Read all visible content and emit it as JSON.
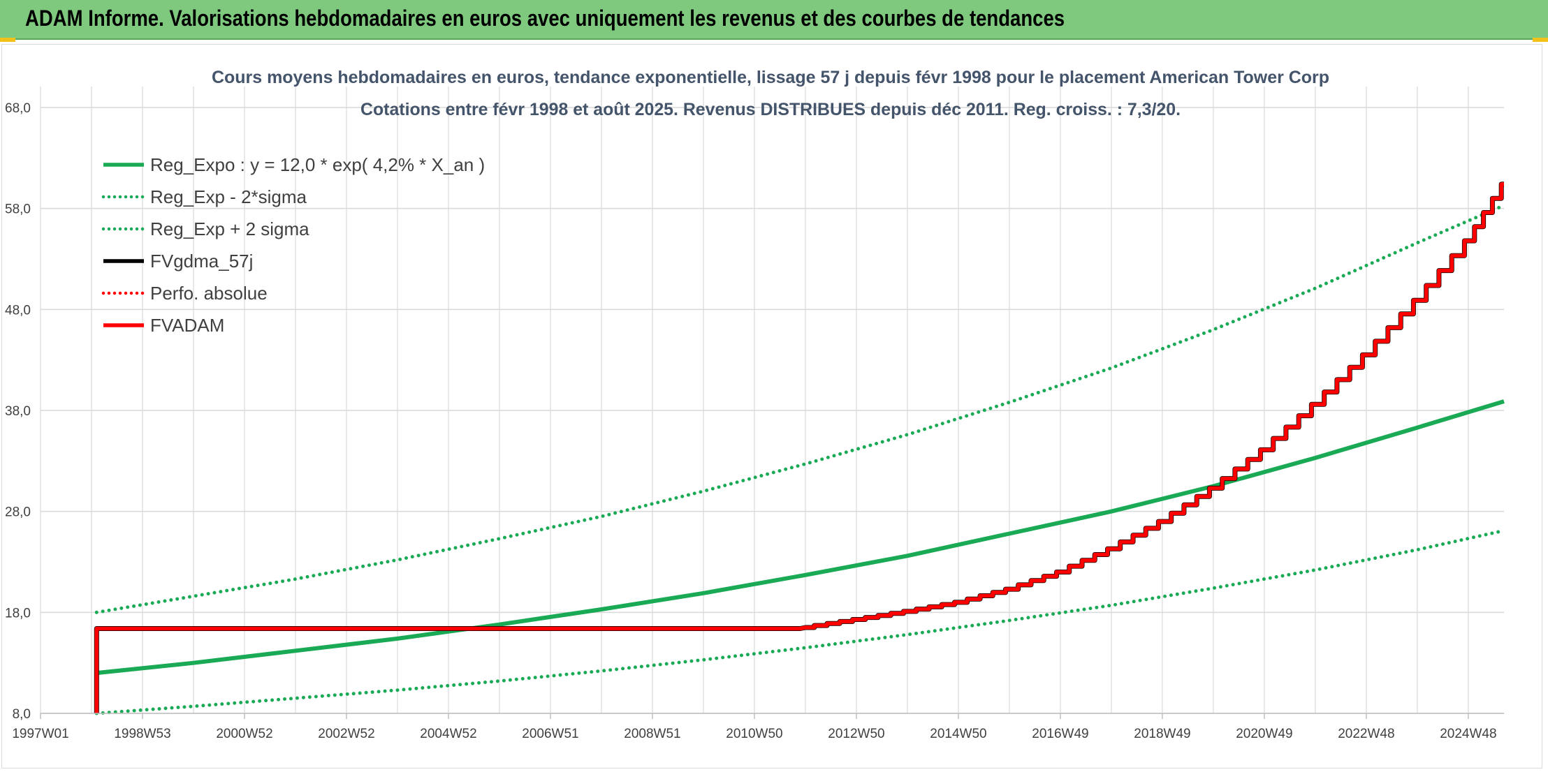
{
  "banner": {
    "title": "ADAM Informe. Valorisations hebdomadaires en euros avec uniquement les revenus et des courbes de tendances"
  },
  "colors": {
    "banner_bg": "#7fc97f",
    "reg_green": "#1aaa55",
    "black": "#000000",
    "red": "#ff0000",
    "grid": "#d9d9d9",
    "text": "#404040"
  },
  "chart_data": {
    "type": "line",
    "title": "Cours moyens hebdomadaires en euros, tendance exponentielle, lissage 57 j depuis févr 1998 pour le placement American Tower Corp",
    "subtitle": "Cotations entre févr 1998 et août 2025. Revenus DISTRIBUES depuis déc 2011. Reg. croiss. : 7,3/20.",
    "y_ticks": [
      "68,0",
      "58,0",
      "48,0",
      "38,0",
      "28,0",
      "18,0",
      "8,0"
    ],
    "ylim": [
      8,
      68
    ],
    "x_ticks": [
      "1997W01",
      "1998W53",
      "2000W52",
      "2002W52",
      "2004W52",
      "2006W51",
      "2008W51",
      "2010W50",
      "2012W50",
      "2014W50",
      "2016W49",
      "2018W49",
      "2020W49",
      "2022W48",
      "2024W48"
    ],
    "x_tick_years": [
      1997.0,
      1999.0,
      2001.0,
      2003.0,
      2005.0,
      2007.0,
      2009.0,
      2011.0,
      2013.0,
      2015.0,
      2017.0,
      2019.0,
      2021.0,
      2023.0,
      2025.0
    ],
    "xlim": [
      1997.0,
      2025.7
    ],
    "grid": true,
    "legend_position": "top-left",
    "series": [
      {
        "name": "Reg_Expo : y = 12,0 * exp( 4,2% *  X_an )",
        "style": "solid",
        "color": "#1aaa55",
        "x": [
          1998.1,
          2000.0,
          2002.0,
          2004.0,
          2006.0,
          2008.0,
          2010.0,
          2012.0,
          2014.0,
          2016.0,
          2018.0,
          2020.0,
          2022.0,
          2024.0,
          2025.7
        ],
        "y": [
          12.0,
          13.0,
          14.2,
          15.4,
          16.8,
          18.3,
          19.9,
          21.7,
          23.6,
          25.8,
          28.0,
          30.5,
          33.3,
          36.3,
          38.9
        ]
      },
      {
        "name": "Reg_Exp - 2*sigma",
        "style": "dotted",
        "color": "#1aaa55",
        "x": [
          1998.1,
          2000.0,
          2002.0,
          2004.0,
          2006.0,
          2008.0,
          2010.0,
          2012.0,
          2014.0,
          2016.0,
          2018.0,
          2020.0,
          2022.0,
          2024.0,
          2025.7
        ],
        "y": [
          8.0,
          8.7,
          9.5,
          10.3,
          11.2,
          12.2,
          13.3,
          14.5,
          15.8,
          17.2,
          18.7,
          20.4,
          22.2,
          24.2,
          26.1
        ]
      },
      {
        "name": "Reg_Exp + 2 sigma",
        "style": "dotted",
        "color": "#1aaa55",
        "x": [
          1998.1,
          2000.0,
          2002.0,
          2004.0,
          2006.0,
          2008.0,
          2010.0,
          2012.0,
          2014.0,
          2016.0,
          2018.0,
          2020.0,
          2022.0,
          2024.0,
          2025.7
        ],
        "y": [
          18.0,
          19.6,
          21.3,
          23.2,
          25.3,
          27.5,
          30.0,
          32.7,
          35.6,
          38.8,
          42.2,
          46.0,
          50.1,
          54.6,
          58.3
        ]
      },
      {
        "name": "FVgdma_57j",
        "style": "solid",
        "color": "#000000",
        "x": [
          1998.1,
          1998.1,
          2011.9,
          2012.0,
          2013.0,
          2014.0,
          2015.0,
          2016.0,
          2017.0,
          2018.0,
          2019.0,
          2020.0,
          2021.0,
          2022.0,
          2023.0,
          2024.0,
          2025.0,
          2025.7
        ],
        "y": [
          8.0,
          16.4,
          16.4,
          16.5,
          17.3,
          18.1,
          19.0,
          20.3,
          22.0,
          24.3,
          27.0,
          30.3,
          34.1,
          38.6,
          43.5,
          48.9,
          54.8,
          60.4
        ]
      },
      {
        "name": "Perfo. absolue",
        "style": "dotted",
        "color": "#ff0000",
        "x": [],
        "y": []
      },
      {
        "name": "FVADAM",
        "style": "solid",
        "color": "#ff0000",
        "x": [
          1998.1,
          1998.1,
          2011.9,
          2012.0,
          2013.0,
          2014.0,
          2015.0,
          2016.0,
          2017.0,
          2018.0,
          2019.0,
          2020.0,
          2021.0,
          2022.0,
          2023.0,
          2024.0,
          2025.0,
          2025.7
        ],
        "y": [
          8.0,
          16.4,
          16.4,
          16.5,
          17.3,
          18.1,
          19.0,
          20.3,
          22.0,
          24.3,
          27.0,
          30.3,
          34.1,
          38.6,
          43.5,
          48.9,
          54.8,
          60.4
        ]
      }
    ]
  }
}
